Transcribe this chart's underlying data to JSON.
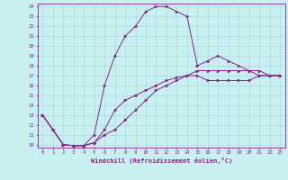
{
  "xlabel": "Windchill (Refroidissement éolien,°C)",
  "bg_color": "#c8f0f0",
  "line_color": "#882288",
  "grid_color": "#aadddd",
  "xmin": 0,
  "xmax": 23,
  "ymin": 10,
  "ymax": 24,
  "xticks": [
    0,
    1,
    2,
    3,
    4,
    5,
    6,
    7,
    8,
    9,
    10,
    11,
    12,
    13,
    14,
    15,
    16,
    17,
    18,
    19,
    20,
    21,
    22,
    23
  ],
  "yticks": [
    10,
    11,
    12,
    13,
    14,
    15,
    16,
    17,
    18,
    19,
    20,
    21,
    22,
    23,
    24
  ],
  "curve1_x": [
    0,
    1,
    2,
    3,
    4,
    5,
    6,
    7,
    8,
    9,
    10,
    11,
    12,
    13,
    14,
    15,
    16,
    17,
    18,
    19,
    20,
    21,
    22,
    23
  ],
  "curve1_y": [
    13,
    11.5,
    10.0,
    9.9,
    9.9,
    11.0,
    16.0,
    19.0,
    21.0,
    22.0,
    23.5,
    24.0,
    24.0,
    23.5,
    23.0,
    18.0,
    18.5,
    19.0,
    18.5,
    18.0,
    17.5,
    17.5,
    17.0,
    17.0
  ],
  "curve2_x": [
    0,
    1,
    2,
    3,
    4,
    5,
    6,
    7,
    8,
    9,
    10,
    11,
    12,
    13,
    14,
    15,
    16,
    17,
    18,
    19,
    20,
    21,
    22,
    23
  ],
  "curve2_y": [
    13,
    11.5,
    10.0,
    9.9,
    9.9,
    10.2,
    11.0,
    11.5,
    12.5,
    13.5,
    14.5,
    15.5,
    16.0,
    16.5,
    17.0,
    17.5,
    17.5,
    17.5,
    17.5,
    17.5,
    17.5,
    17.0,
    17.0,
    17.0
  ],
  "curve3_x": [
    0,
    1,
    2,
    3,
    4,
    5,
    6,
    7,
    8,
    9,
    10,
    11,
    12,
    13,
    14,
    15,
    16,
    17,
    18,
    19,
    20,
    21,
    22,
    23
  ],
  "curve3_y": [
    13,
    11.5,
    10.0,
    9.9,
    9.9,
    10.2,
    11.5,
    13.5,
    14.5,
    15.0,
    15.5,
    16.0,
    16.5,
    16.8,
    17.0,
    17.0,
    16.5,
    16.5,
    16.5,
    16.5,
    16.5,
    17.0,
    17.0,
    17.0
  ]
}
